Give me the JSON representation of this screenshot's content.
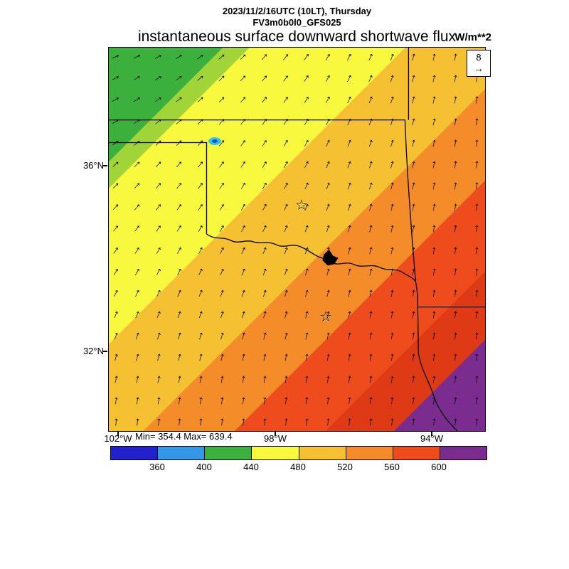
{
  "header": {
    "line1": "2023/11/2/16UTC (10LT), Thursday",
    "line2": "FV3m0b0l0_GFS025",
    "title": "instantaneous surface downward shortwave flux",
    "units": "W/m**2"
  },
  "wind_ref": {
    "value": "8",
    "arrow": "→"
  },
  "axis": {
    "lat": [
      "36°N",
      "32°N"
    ],
    "lon": [
      "102°W",
      "98°W",
      "94°W"
    ]
  },
  "stats": "Min= 354.4 Max= 639.4",
  "map": {
    "star": "☆",
    "arrow_glyph": "↑",
    "grid": {
      "rows": 18,
      "cols": 18
    }
  },
  "colorbar": {
    "colors": [
      "#2222cc",
      "#3399e6",
      "#3cb03c",
      "#f8f83e",
      "#f5c132",
      "#f58c2a",
      "#ee4c1c",
      "#7a2d8f"
    ],
    "ticks": [
      "360",
      "400",
      "440",
      "480",
      "520",
      "560",
      "600"
    ]
  },
  "chart_data": {
    "type": "heatmap",
    "title": "instantaneous surface downward shortwave flux",
    "units": "W/m**2",
    "datetime": "2023/11/2/16UTC (10LT), Thursday",
    "model": "FV3m0b0l0_GFS025",
    "min_value": 354.4,
    "max_value": 639.4,
    "colorbar_boundaries": [
      360,
      400,
      440,
      480,
      520,
      560,
      600
    ],
    "colorbar_colors_low_to_high": [
      "#2222cc",
      "#3399e6",
      "#3cb03c",
      "#f8f83e",
      "#f5c132",
      "#f58c2a",
      "#ee4c1c",
      "#7a2d8f"
    ],
    "lat_ticks": [
      "36°N",
      "32°N"
    ],
    "lon_ticks": [
      "102°W",
      "98°W",
      "94°W"
    ],
    "wind_reference_vector": 8,
    "field_summary": "Shortwave flux increases diagonally from ~400-440 W/m**2 (green) in the northwest corner through yellow (~480), orange (~520-560) and red (~560-600) to >600 W/m**2 (purple) in the southeast corner; wind arrows rotate from easterly-pointing in the northwest to northward-pointing in the south and east; small cloudy low-flux blue patch near 100.5W/36.2N; stars mark two cities; state borders of the Texas/Oklahoma region overlaid."
  }
}
